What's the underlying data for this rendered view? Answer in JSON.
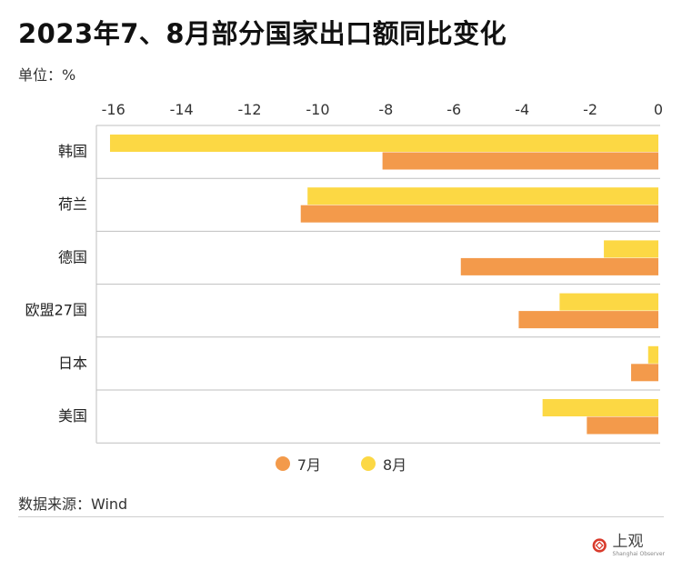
{
  "title": "2023年7、8月部分国家出口额同比变化",
  "unit_label": "单位：%",
  "source_label": "数据来源：Wind",
  "logo": {
    "main": "上观",
    "sub": "Shanghai Observer"
  },
  "colors": {
    "july": "#F39A4B",
    "august": "#FCD844",
    "grid": "#bfbfbf"
  },
  "chart_data": {
    "type": "bar",
    "orientation": "horizontal",
    "categories": [
      "韩国",
      "荷兰",
      "德国",
      "欧盟27国",
      "日本",
      "美国"
    ],
    "series": [
      {
        "name": "7月",
        "values": [
          -8.1,
          -10.5,
          -5.8,
          -4.1,
          -0.8,
          -2.1
        ]
      },
      {
        "name": "8月",
        "values": [
          -16.1,
          -10.3,
          -1.6,
          -2.9,
          -0.3,
          -3.4
        ]
      }
    ],
    "xlim": [
      -16.5,
      0
    ],
    "xticks": [
      -16,
      -14,
      -12,
      -10,
      -8,
      -6,
      -4,
      -2,
      0
    ],
    "tick_labels": [
      "-16",
      "-14",
      "-12",
      "-10",
      "-8",
      "-6",
      "-4",
      "-2",
      "0"
    ],
    "legend_position": "bottom"
  }
}
